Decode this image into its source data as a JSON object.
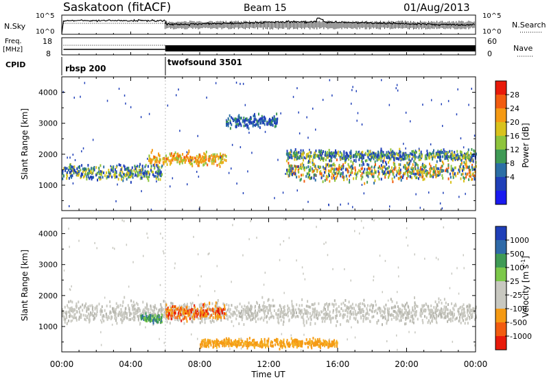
{
  "header": {
    "station": "Saskatoon (fitACF)",
    "beam": "Beam 15",
    "date": "01/Aug/2013"
  },
  "top_panels": {
    "nsky_label": "N.Sky",
    "nsky_ticks": [
      "10^5",
      "10^0"
    ],
    "nsearch_label": "N.Search",
    "nsearch_ticks": [
      "10^5",
      "10^0"
    ],
    "freq_label_1": "Freq.",
    "freq_label_2": "[MHz]",
    "freq_ticks": [
      "18",
      "8"
    ],
    "nave_label": "Nave",
    "nave_ticks": [
      "60",
      "0"
    ],
    "cpid_label": "CPID",
    "cpid_modes": [
      {
        "name": "rbsp 200",
        "start_hour": 0
      },
      {
        "name": "twofsound 3501",
        "start_hour": 6
      }
    ]
  },
  "colorbars": {
    "power": {
      "label": "Power [dB]",
      "ticks": [
        "28",
        "24",
        "20",
        "16",
        "12",
        "8",
        "4"
      ],
      "colors": [
        "#e81a0a",
        "#f25c10",
        "#f59a14",
        "#d9c21c",
        "#8ec43c",
        "#3f9a55",
        "#2b6ea5",
        "#1f3fb8",
        "#1a1af0"
      ]
    },
    "velocity": {
      "label": "Velocity [m s",
      "label_sup": "-1",
      "label_end": "]",
      "ticks": [
        "1000",
        "500",
        "100",
        "25",
        "-25",
        "-100",
        "-500",
        "-1000"
      ],
      "colors": [
        "#1f3fb8",
        "#2f6aa8",
        "#3f9a55",
        "#7cc84a",
        "#c8c8c0",
        "#c8c8c0",
        "#f59a14",
        "#f25c10",
        "#e81a0a"
      ]
    }
  },
  "chart_data": [
    {
      "type": "heatmap",
      "name": "power",
      "ylabel": "Slant Range [km]",
      "yticks": [
        "4000",
        "3000",
        "2000",
        "1000"
      ],
      "ylim": [
        180,
        4500
      ],
      "xlim": [
        0,
        24
      ],
      "xlabel": "",
      "scatter_features": [
        {
          "t0": 0.0,
          "t1": 5.8,
          "r_center": 1450,
          "r_width": 350,
          "level": "mixed-low"
        },
        {
          "t0": 5.0,
          "t1": 9.5,
          "r_center": 1900,
          "r_width": 300,
          "level": "high"
        },
        {
          "t0": 9.5,
          "t1": 12.5,
          "r_center": 3100,
          "r_width": 300,
          "level": "low"
        },
        {
          "t0": 13.0,
          "t1": 24.0,
          "r_center": 1500,
          "r_width": 450,
          "level": "mixed"
        },
        {
          "t0": 13.0,
          "t1": 24.0,
          "r_center": 2000,
          "r_width": 250,
          "level": "mixed-low"
        }
      ]
    },
    {
      "type": "heatmap",
      "name": "velocity",
      "ylabel": "Slant Range [km]",
      "yticks": [
        "4000",
        "3000",
        "2000",
        "1000"
      ],
      "ylim": [
        180,
        4500
      ],
      "xlim": [
        0,
        24
      ],
      "xlabel": "Time UT",
      "xticks": [
        "00:00",
        "04:00",
        "08:00",
        "12:00",
        "16:00",
        "20:00",
        "00:00"
      ],
      "xtick_hours": [
        0,
        4,
        8,
        12,
        16,
        20,
        24
      ],
      "scatter_features": [
        {
          "t0": 0.0,
          "t1": 24.0,
          "r_center": 1500,
          "r_width": 500,
          "level": "near-zero"
        },
        {
          "t0": 4.5,
          "t1": 5.8,
          "r_center": 1300,
          "r_width": 200,
          "level": "positive"
        },
        {
          "t0": 6.0,
          "t1": 9.5,
          "r_center": 1500,
          "r_width": 350,
          "level": "negative"
        },
        {
          "t0": 8.0,
          "t1": 16.0,
          "r_center": 500,
          "r_width": 200,
          "level": "slight-negative"
        }
      ]
    }
  ]
}
